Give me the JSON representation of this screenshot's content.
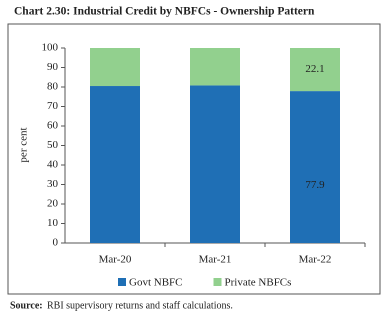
{
  "chart_data": {
    "type": "stacked_bar",
    "title": "Chart 2.30: Industrial Credit by NBFCs - Ownership Pattern",
    "y_label": "per cent",
    "categories": [
      "Mar-20",
      "Mar-21",
      "Mar-22"
    ],
    "series": [
      {
        "name": "Govt NBFC",
        "color": "#1f6fb5",
        "values": [
          80.5,
          80.8,
          77.9
        ],
        "value_labels": [
          null,
          null,
          "77.9"
        ]
      },
      {
        "name": "Private NBFCs",
        "color": "#92d08e",
        "values": [
          19.5,
          19.2,
          22.1
        ],
        "value_labels": [
          null,
          null,
          "22.1"
        ]
      }
    ],
    "ylim": [
      0,
      100
    ],
    "yticks": [
      0,
      10,
      20,
      30,
      40,
      50,
      60,
      70,
      80,
      90,
      100
    ],
    "grid": false,
    "legend": "bottom"
  },
  "source_label": "Source:",
  "source": "RBI supervisory returns and staff calculations."
}
